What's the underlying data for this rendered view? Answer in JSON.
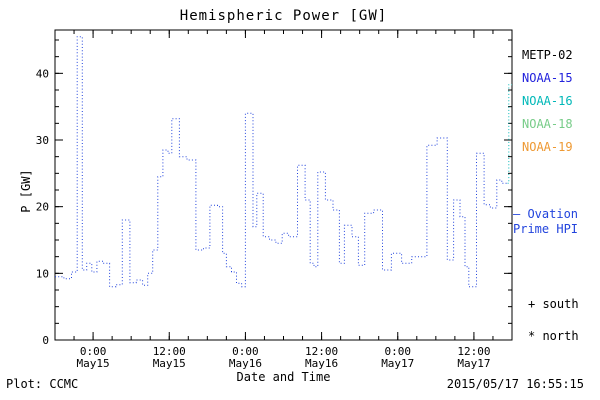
{
  "footer": {
    "left": "Plot: CCMC",
    "right": "2015/05/17 16:55:15"
  },
  "legend": {
    "items": [
      {
        "label": "METP-02",
        "color": "#000000"
      },
      {
        "label": "NOAA-15",
        "color": "#2222dd"
      },
      {
        "label": "NOAA-16",
        "color": "#00b8b8"
      },
      {
        "label": "NOAA-18",
        "color": "#77cc88"
      },
      {
        "label": "NOAA-19",
        "color": "#ee9933"
      }
    ]
  },
  "annotations": {
    "ovation_line1": "– Ovation",
    "ovation_line2": "Prime HPI",
    "ovation_color": "#2244dd",
    "south": "+ south",
    "north": "* north"
  },
  "chart_data": {
    "type": "line",
    "step": true,
    "line_style": "dotted",
    "title": "Hemispheric Power [GW]",
    "xlabel": "Date and Time",
    "ylabel": "P [GW]",
    "ylim": [
      0,
      46.5
    ],
    "x_range": [
      0,
      72
    ],
    "x_minor_step": 3,
    "y_minor_step": 2.5,
    "grid": false,
    "legend_position": "right",
    "xticks": [
      {
        "t": 6,
        "time": "0:00",
        "date": "May15"
      },
      {
        "t": 18,
        "time": "12:00",
        "date": "May15"
      },
      {
        "t": 30,
        "time": "0:00",
        "date": "May16"
      },
      {
        "t": 42,
        "time": "12:00",
        "date": "May16"
      },
      {
        "t": 54,
        "time": "0:00",
        "date": "May17"
      },
      {
        "t": 66,
        "time": "12:00",
        "date": "May17"
      }
    ],
    "yticks": [
      0,
      10,
      20,
      30,
      40
    ],
    "series": [
      {
        "name": "Ovation Prime HPI",
        "color": "#2244dd",
        "points": [
          [
            0,
            9.5
          ],
          [
            1.4,
            9.2
          ],
          [
            2.6,
            10.2
          ],
          [
            3.5,
            45.5
          ],
          [
            4.3,
            10.5
          ],
          [
            5.0,
            11.5
          ],
          [
            5.8,
            10.2
          ],
          [
            6.6,
            11.8
          ],
          [
            7.6,
            11.5
          ],
          [
            8.6,
            8.0
          ],
          [
            9.6,
            8.3
          ],
          [
            10.6,
            18.0
          ],
          [
            11.8,
            8.6
          ],
          [
            12.8,
            9.0
          ],
          [
            13.8,
            8.2
          ],
          [
            14.6,
            10.0
          ],
          [
            15.4,
            13.5
          ],
          [
            16.2,
            24.5
          ],
          [
            17.0,
            28.5
          ],
          [
            17.8,
            28.0
          ],
          [
            18.4,
            33.2
          ],
          [
            19.6,
            27.5
          ],
          [
            20.8,
            27.0
          ],
          [
            22.2,
            13.5
          ],
          [
            23.4,
            13.8
          ],
          [
            24.4,
            20.2
          ],
          [
            25.6,
            20.0
          ],
          [
            26.4,
            13.0
          ],
          [
            27.0,
            11.0
          ],
          [
            27.8,
            10.2
          ],
          [
            28.6,
            8.5
          ],
          [
            29.4,
            8.0
          ],
          [
            30.0,
            34.0
          ],
          [
            31.2,
            17.0
          ],
          [
            31.8,
            22.0
          ],
          [
            32.8,
            15.5
          ],
          [
            33.8,
            15.0
          ],
          [
            34.8,
            14.5
          ],
          [
            35.8,
            16.0
          ],
          [
            36.8,
            15.5
          ],
          [
            38.2,
            26.2
          ],
          [
            39.4,
            21.0
          ],
          [
            40.2,
            11.5
          ],
          [
            40.8,
            11.0
          ],
          [
            41.4,
            25.2
          ],
          [
            42.6,
            21.0
          ],
          [
            43.8,
            19.5
          ],
          [
            44.8,
            11.5
          ],
          [
            45.6,
            17.2
          ],
          [
            46.8,
            15.5
          ],
          [
            47.8,
            11.2
          ],
          [
            48.8,
            19.0
          ],
          [
            50.2,
            19.5
          ],
          [
            51.6,
            10.5
          ],
          [
            53.0,
            13.0
          ],
          [
            54.6,
            11.5
          ],
          [
            56.2,
            12.5
          ],
          [
            58.6,
            29.2
          ],
          [
            60.2,
            30.3
          ],
          [
            61.8,
            12.0
          ],
          [
            62.8,
            21.0
          ],
          [
            63.8,
            18.5
          ],
          [
            64.6,
            11.0
          ],
          [
            65.2,
            8.0
          ],
          [
            66.4,
            28.0
          ],
          [
            67.6,
            20.3
          ],
          [
            68.6,
            19.8
          ],
          [
            69.6,
            24.0
          ],
          [
            70.4,
            23.5
          ],
          [
            71.3,
            23.5
          ]
        ]
      },
      {
        "name": "NOAA-16",
        "color": "#00b8b8",
        "points": [
          [
            71.3,
            23.5
          ],
          [
            71.5,
            38.3
          ],
          [
            72,
            38.3
          ]
        ]
      }
    ]
  }
}
